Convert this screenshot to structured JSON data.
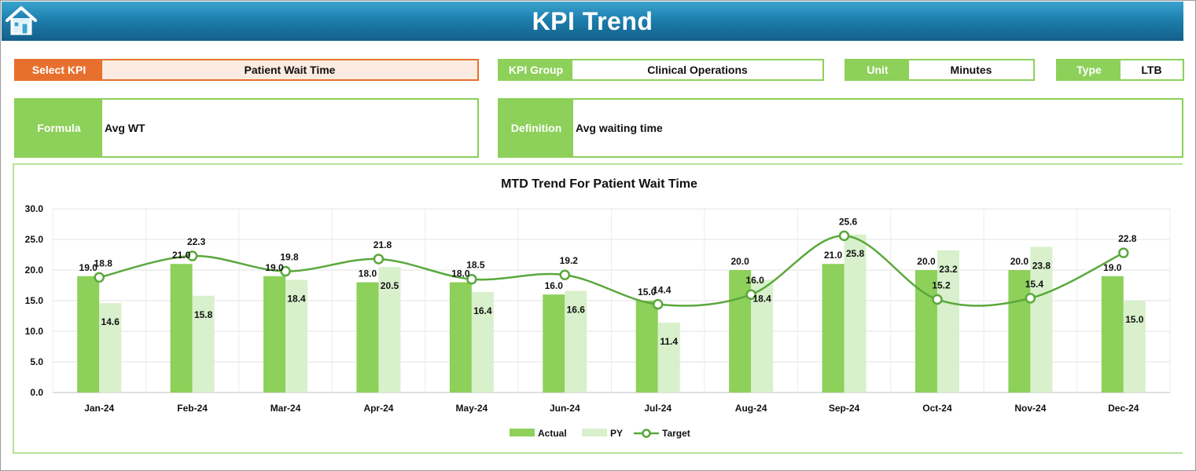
{
  "header": {
    "title": "KPI Trend"
  },
  "fields": {
    "select_kpi": {
      "label": "Select KPI",
      "value": "Patient Wait Time"
    },
    "kpi_group": {
      "label": "KPI Group",
      "value": "Clinical Operations"
    },
    "unit": {
      "label": "Unit",
      "value": "Minutes"
    },
    "type": {
      "label": "Type",
      "value": "LTB"
    },
    "formula": {
      "label": "Formula",
      "value": "Avg WT"
    },
    "definition": {
      "label": "Definition",
      "value": "Avg waiting time"
    }
  },
  "colors": {
    "actual": "#8dd05a",
    "py": "#d8f0cb",
    "target": "#5aa83c",
    "accent": "#e8702e",
    "banner": "#1e7fae"
  },
  "chart_data": {
    "type": "bar",
    "title": "MTD Trend For Patient Wait Time",
    "categories": [
      "Jan-24",
      "Feb-24",
      "Mar-24",
      "Apr-24",
      "May-24",
      "Jun-24",
      "Jul-24",
      "Aug-24",
      "Sep-24",
      "Oct-24",
      "Nov-24",
      "Dec-24"
    ],
    "series": [
      {
        "name": "Actual",
        "kind": "bar",
        "values": [
          19.0,
          21.0,
          19.0,
          18.0,
          18.0,
          16.0,
          15.0,
          20.0,
          21.0,
          20.0,
          20.0,
          19.0
        ]
      },
      {
        "name": "PY",
        "kind": "bar",
        "values": [
          14.6,
          15.8,
          18.4,
          20.5,
          16.4,
          16.6,
          11.4,
          18.4,
          25.8,
          23.2,
          23.8,
          15.0
        ]
      },
      {
        "name": "Target",
        "kind": "line",
        "values": [
          18.8,
          22.3,
          19.8,
          21.8,
          18.5,
          19.2,
          14.4,
          16.0,
          25.6,
          15.2,
          15.4,
          22.8
        ]
      }
    ],
    "ylim": [
      0,
      30
    ],
    "yticks": [
      "0.0",
      "5.0",
      "10.0",
      "15.0",
      "20.0",
      "25.0",
      "30.0"
    ],
    "grid": true,
    "legend": "bottom"
  }
}
